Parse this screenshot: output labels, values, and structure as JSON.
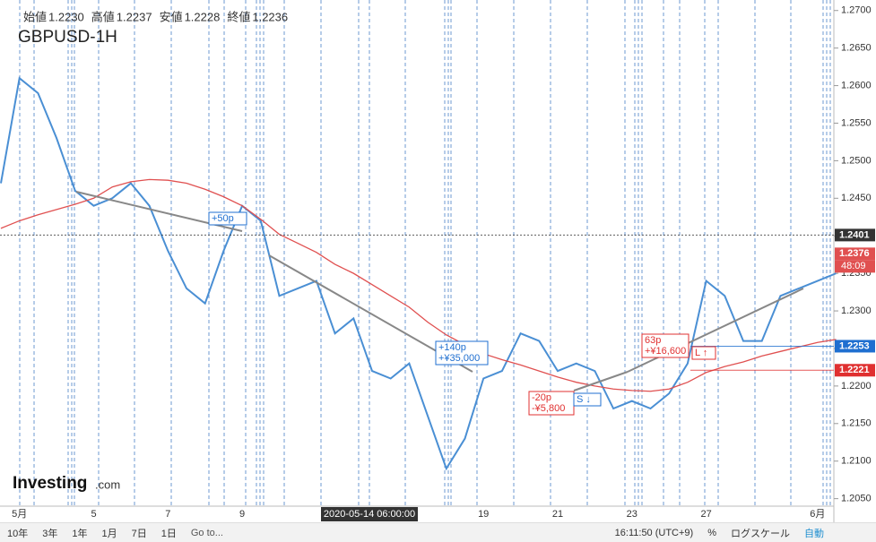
{
  "chart_data": {
    "type": "line",
    "title": "GBPUSD-1H",
    "ohlc": [
      {
        "label": "始値",
        "value": "1.2230"
      },
      {
        "label": "高値",
        "value": "1.2237"
      },
      {
        "label": "安値",
        "value": "1.2228"
      },
      {
        "label": "終値",
        "value": "1.2236"
      }
    ],
    "categories": [
      null,
      "5月",
      null,
      null,
      null,
      "5",
      null,
      null,
      null,
      "7",
      null,
      null,
      null,
      "9",
      null,
      null,
      null,
      null,
      null,
      null,
      null,
      null,
      null,
      null,
      null,
      null,
      "19",
      null,
      null,
      null,
      "21",
      null,
      null,
      null,
      "23",
      null,
      null,
      null,
      "27",
      null,
      null,
      null,
      null,
      null,
      "6月",
      null
    ],
    "series": [
      {
        "color": "#4a8fd4",
        "values": [
          1.247,
          1.261,
          1.259,
          1.253,
          1.246,
          1.244,
          1.245,
          1.247,
          1.244,
          1.238,
          1.233,
          1.231,
          1.238,
          1.244,
          1.242,
          1.232,
          1.233,
          1.234,
          1.227,
          1.229,
          1.222,
          1.221,
          1.223,
          1.216,
          1.209,
          1.213,
          1.221,
          1.222,
          1.227,
          1.226,
          1.222,
          1.223,
          1.222,
          1.217,
          1.218,
          1.217,
          1.219,
          1.223,
          1.234,
          1.232,
          1.226,
          1.226,
          1.232,
          1.233,
          1.234,
          1.235
        ]
      },
      {
        "color": "#e05050",
        "values": [
          1.241,
          1.242,
          1.2428,
          1.2435,
          1.2442,
          1.245,
          1.2465,
          1.2472,
          1.2475,
          1.2474,
          1.247,
          1.2462,
          1.2452,
          1.244,
          1.2422,
          1.2402,
          1.239,
          1.2378,
          1.2362,
          1.235,
          1.2335,
          1.232,
          1.2305,
          1.2285,
          1.2268,
          1.2255,
          1.2243,
          1.2235,
          1.2228,
          1.222,
          1.2212,
          1.2205,
          1.22,
          1.2196,
          1.2194,
          1.2193,
          1.2196,
          1.2205,
          1.2218,
          1.2226,
          1.2232,
          1.224,
          1.2246,
          1.2252,
          1.2258,
          1.2262
        ]
      }
    ],
    "ylim": [
      1.204,
      1.2714
    ],
    "yticks": [
      {
        "value": 1.27,
        "label": "1.2700"
      },
      {
        "value": 1.265,
        "label": "1.2650"
      },
      {
        "value": 1.26,
        "label": "1.2600"
      },
      {
        "value": 1.255,
        "label": "1.2550"
      },
      {
        "value": 1.25,
        "label": "1.2500"
      },
      {
        "value": 1.245,
        "label": "1.2450"
      },
      {
        "value": 1.24,
        "label": "1.2400"
      },
      {
        "value": 1.235,
        "label": "1.2350"
      },
      {
        "value": 1.23,
        "label": "1.2300"
      },
      {
        "value": 1.225,
        "label": "1.2250"
      },
      {
        "value": 1.22,
        "label": "1.2200"
      },
      {
        "value": 1.215,
        "label": "1.2150"
      },
      {
        "value": 1.21,
        "label": "1.2100"
      },
      {
        "value": 1.205,
        "label": "1.2050"
      }
    ],
    "price_lines": [
      {
        "value": 1.2401,
        "label": "1.2401",
        "color": "#333333"
      },
      {
        "value": 1.2376,
        "label": "1.2376",
        "color": "#e05050"
      },
      {
        "value": 1.2253,
        "label": "1.2253",
        "color": "#1f6fd0"
      },
      {
        "value": 1.2221,
        "label": "1.2221",
        "color": "#e03030"
      }
    ],
    "countdown": "48:09",
    "crosshair_label": "2020-05-14 06:00:00",
    "annotations": [
      {
        "lines": [
          "+50p"
        ],
        "color": "#1f6fd0"
      },
      {
        "lines": [
          "+140p",
          "+¥35,000"
        ],
        "color": "#1f6fd0"
      },
      {
        "lines": [
          "-20p",
          "-¥5,800"
        ],
        "color": "#e03030"
      },
      {
        "lines": [
          "S ↓"
        ],
        "color": "#1f6fd0"
      },
      {
        "lines": [
          "63p",
          "+¥16,600"
        ],
        "color": "#e03030"
      },
      {
        "lines": [
          "L ↑"
        ],
        "color": "#e03030"
      }
    ],
    "logo": "Investing",
    "logo_suffix": ".com"
  },
  "toolbar": {
    "ranges": [
      "10年",
      "3年",
      "1年",
      "1月",
      "7日",
      "1日"
    ],
    "goto": "Go to...",
    "clock": "16:11:50 (UTC+9)",
    "percent": "%",
    "log": "ログスケール",
    "auto": "自動"
  }
}
